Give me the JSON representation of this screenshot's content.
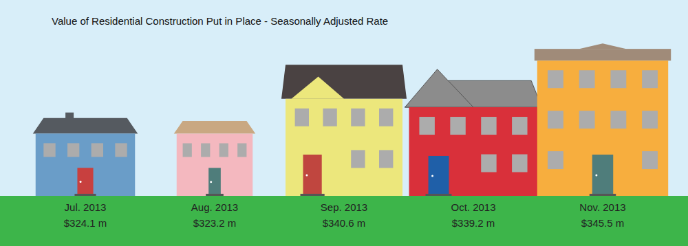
{
  "chart_data": {
    "type": "bar",
    "title": "Value of Residential Construction Put in Place - Seasonally Adjusted Rate",
    "categories": [
      "Jul. 2013",
      "Aug. 2013",
      "Sep. 2013",
      "Oct. 2013",
      "Nov. 2013"
    ],
    "values": [
      324.1,
      323.2,
      340.6,
      339.2,
      345.5
    ],
    "value_labels": [
      "$324.1 m",
      "$323.2 m",
      "$340.6 m",
      "$339.2 m",
      "$345.5 m"
    ],
    "colors": [
      "#6a9dc8",
      "#f4b8bf",
      "#ece77c",
      "#d9303a",
      "#f7ae3e"
    ],
    "ylim": [
      300,
      350
    ],
    "data_labels": true,
    "tick_labels": "x",
    "grid": false
  }
}
